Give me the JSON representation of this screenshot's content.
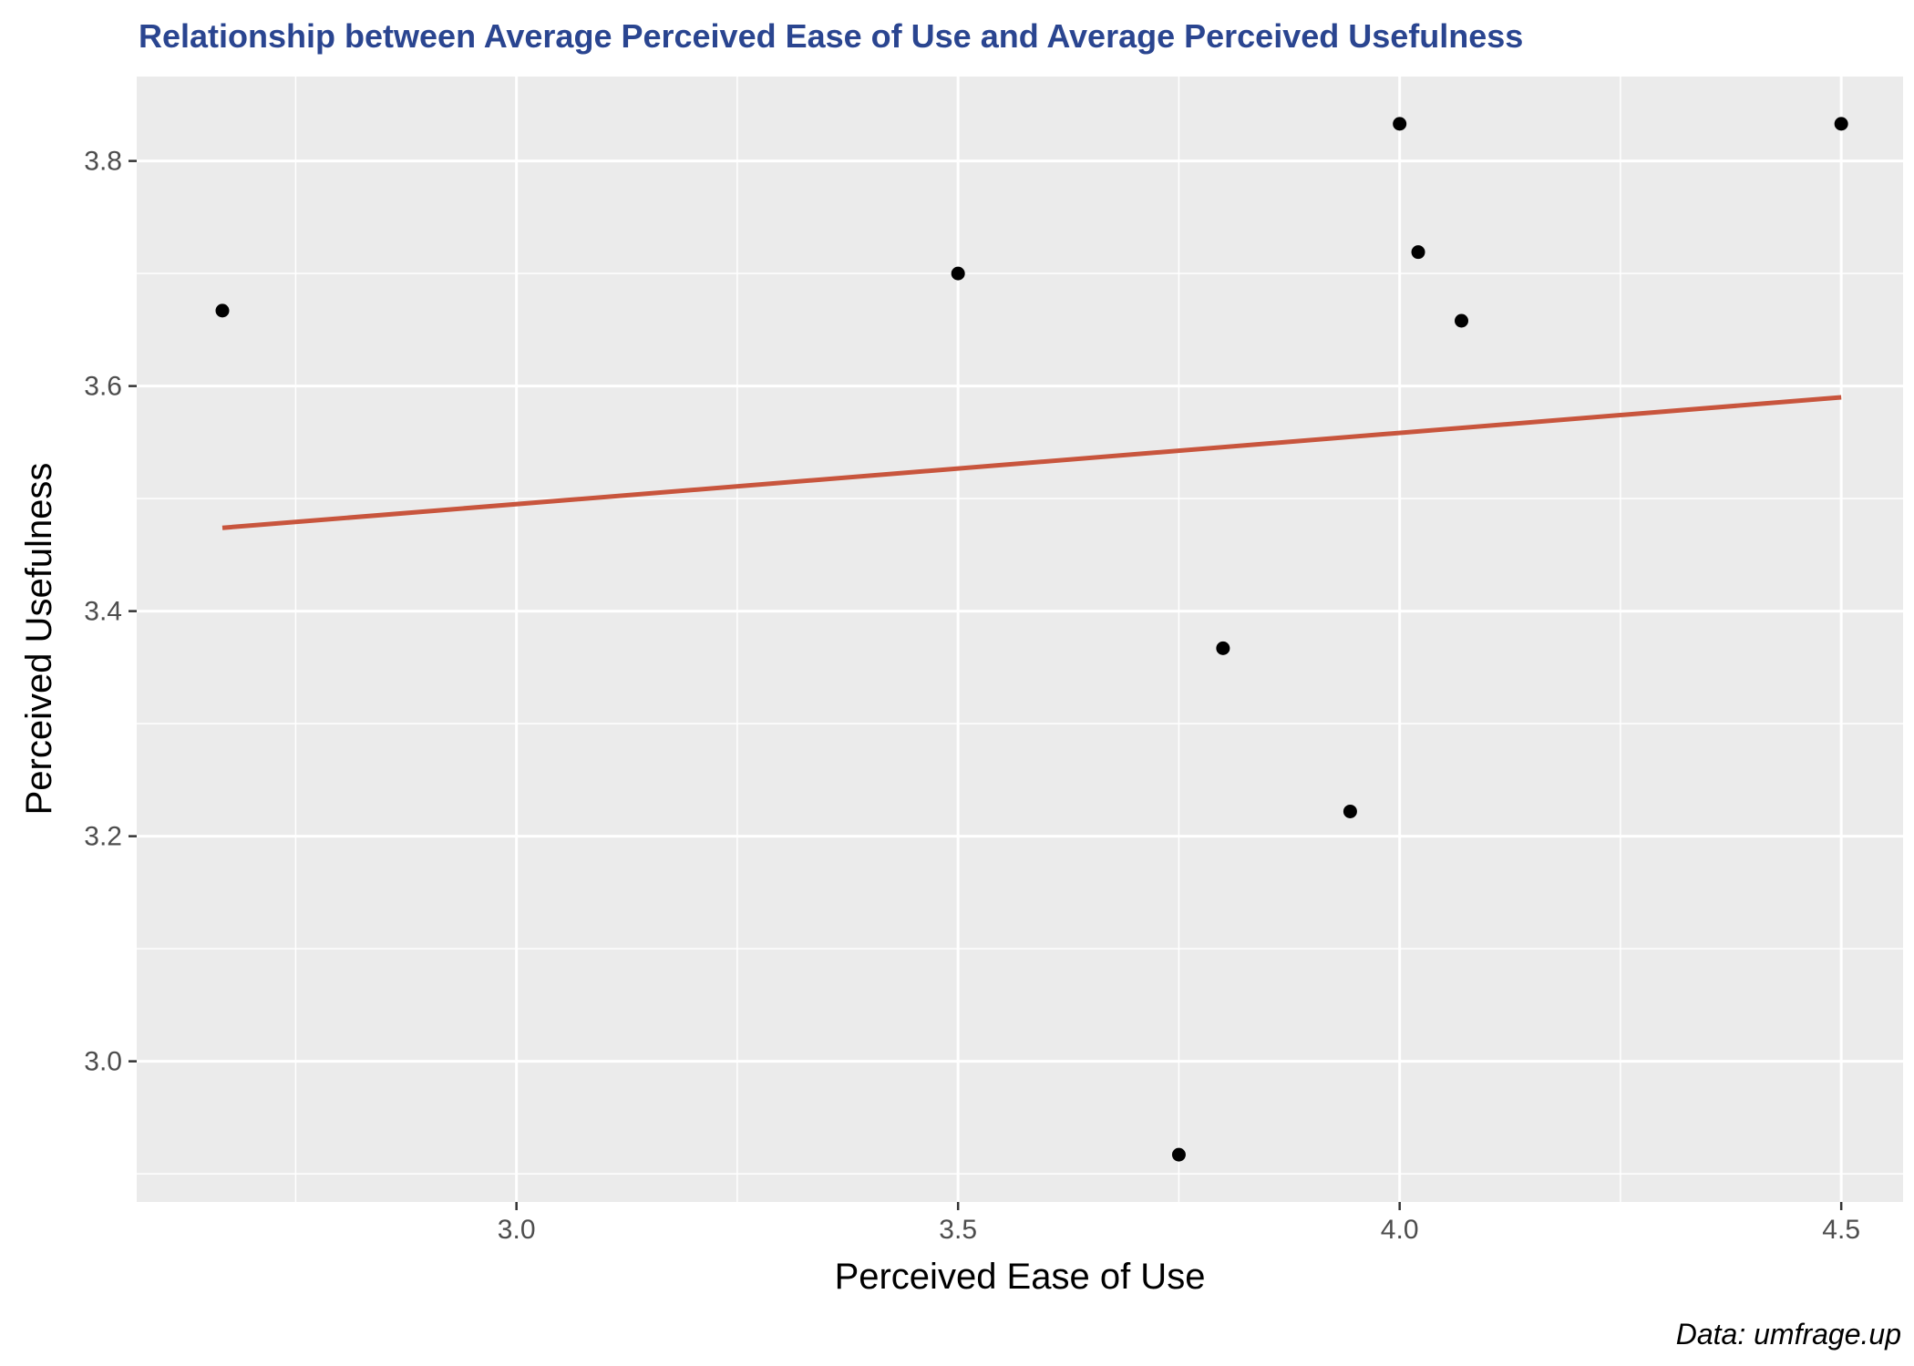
{
  "chart_data": {
    "type": "scatter",
    "title": "Relationship between Average Perceived Ease of Use and Average Perceived Usefulness",
    "xlabel": "Perceived Ease of Use",
    "ylabel": "Perceived Usefulness",
    "caption": "Data: umfrage.up",
    "xlim": [
      2.57,
      4.57
    ],
    "ylim": [
      2.875,
      3.875
    ],
    "x_ticks": [
      3.0,
      3.5,
      4.0,
      4.5
    ],
    "x_tick_labels": [
      "3.0",
      "3.5",
      "4.0",
      "4.5"
    ],
    "y_ticks": [
      3.0,
      3.2,
      3.4,
      3.6,
      3.8
    ],
    "y_tick_labels": [
      "3.0",
      "3.2",
      "3.4",
      "3.6",
      "3.8"
    ],
    "grid": true,
    "points": [
      {
        "x": 2.667,
        "y": 3.667
      },
      {
        "x": 3.5,
        "y": 3.7
      },
      {
        "x": 3.75,
        "y": 2.917
      },
      {
        "x": 3.8,
        "y": 3.367
      },
      {
        "x": 3.944,
        "y": 3.222
      },
      {
        "x": 4.0,
        "y": 3.833
      },
      {
        "x": 4.021,
        "y": 3.719
      },
      {
        "x": 4.07,
        "y": 3.658
      },
      {
        "x": 4.5,
        "y": 3.833
      }
    ],
    "trend_line": {
      "x": [
        2.667,
        4.5
      ],
      "y": [
        3.474,
        3.59
      ]
    },
    "colors": {
      "panel": "#ebebeb",
      "grid": "#ffffff",
      "point": "#000000",
      "trend": "#c8553d",
      "title": "#2a4590"
    }
  }
}
